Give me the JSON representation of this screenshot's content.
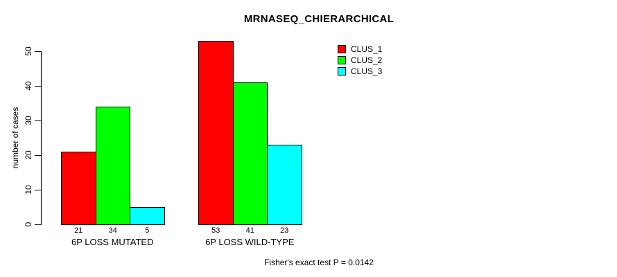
{
  "title": "MRNASEQ_CHIERARCHICAL",
  "ylabel": "number of cases",
  "footer": "Fisher's exact test P = 0.0142",
  "chart_data": {
    "type": "bar",
    "title": "MRNASEQ_CHIERARCHICAL",
    "xlabel": "",
    "ylabel": "number of cases",
    "categories": [
      "6P LOSS MUTATED",
      "6P LOSS WILD-TYPE"
    ],
    "series": [
      {
        "name": "CLUS_1",
        "color": "#FF0000",
        "values": [
          21,
          53
        ]
      },
      {
        "name": "CLUS_2",
        "color": "#00FF00",
        "values": [
          34,
          41
        ]
      },
      {
        "name": "CLUS_3",
        "color": "#00FFFF",
        "values": [
          5,
          23
        ]
      }
    ],
    "bar_value_labels": [
      [
        21,
        34,
        5
      ],
      [
        53,
        41,
        23
      ]
    ],
    "yticks": [
      0,
      10,
      20,
      30,
      40,
      50
    ],
    "ylim": [
      0,
      50
    ],
    "grid": false,
    "legend_position": "top-right",
    "bar_border_color": "#000000",
    "annotation": "Fisher's exact test P = 0.0142"
  }
}
